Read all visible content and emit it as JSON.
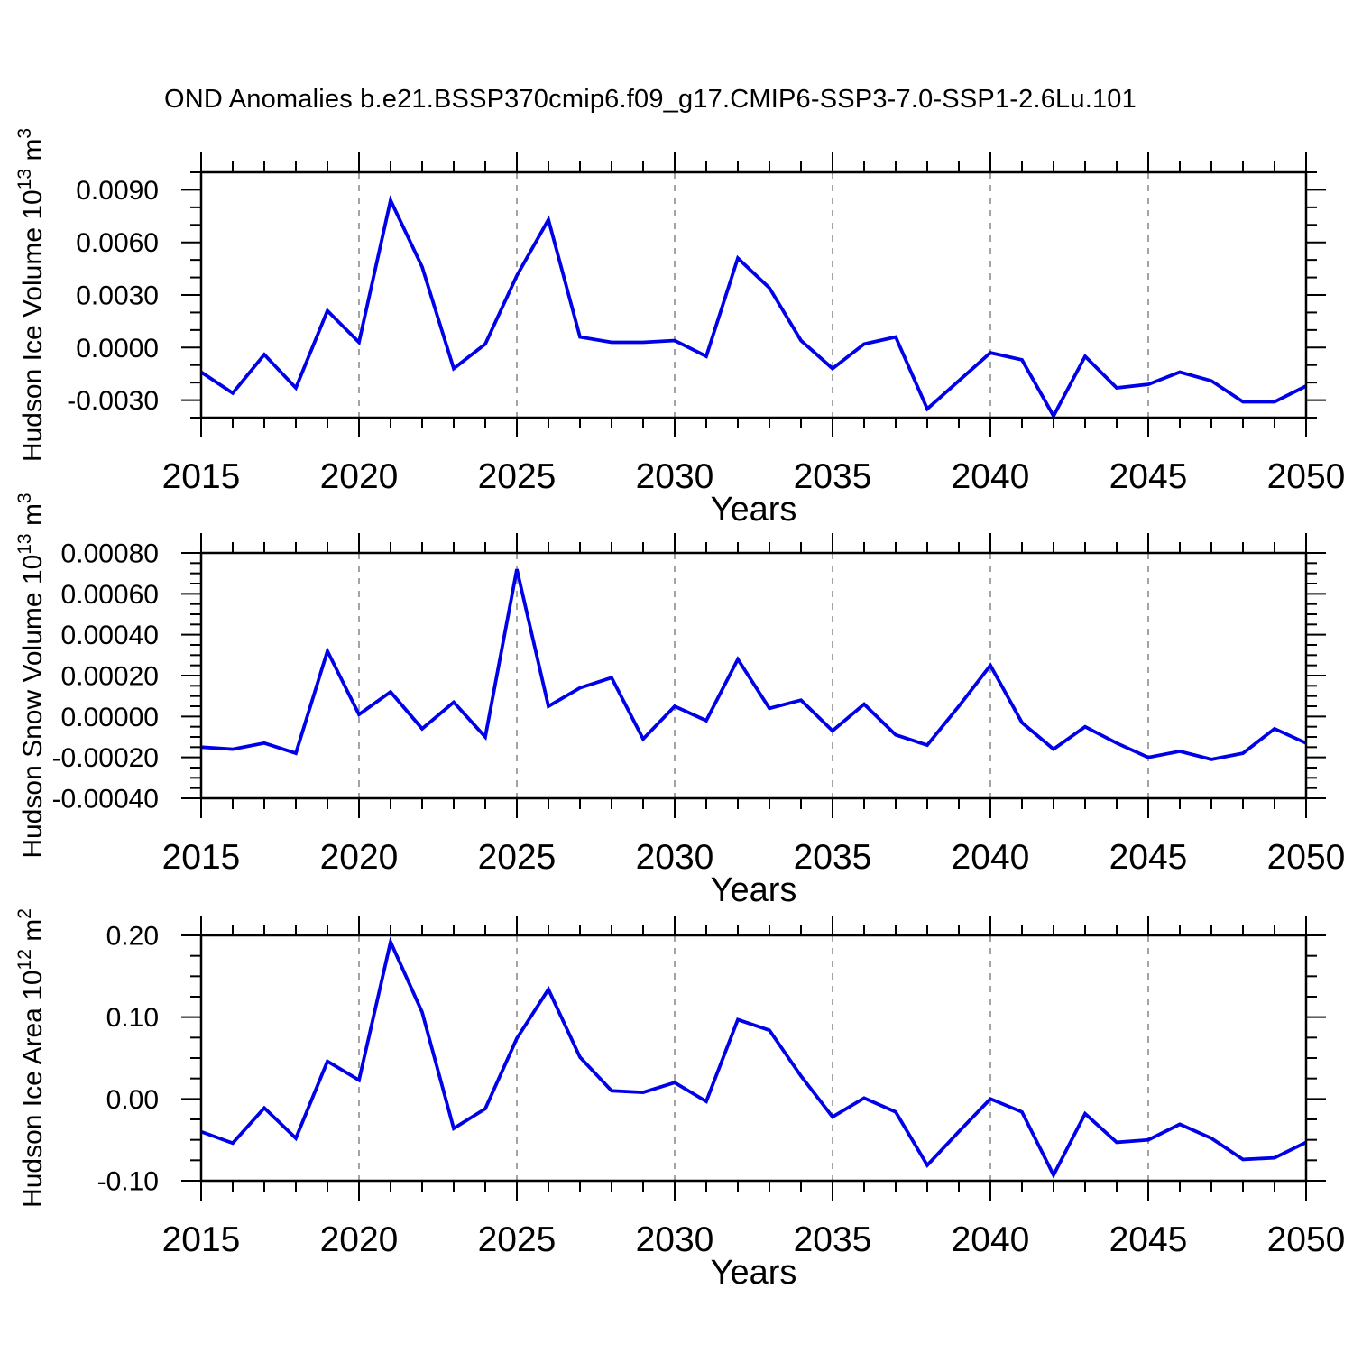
{
  "title": "OND Anomalies b.e21.BSSP370cmip6.f09_g17.CMIP6-SSP3-7.0-SSP1-2.6Lu.101",
  "colors": {
    "line": "#0000e8",
    "grid": "#9a9a9a",
    "axis": "#000000"
  },
  "x_axis": {
    "title": "Years",
    "start": 2015,
    "end": 2050,
    "major_step": 5,
    "minor_step": 1,
    "grid_years": [
      2020,
      2025,
      2030,
      2035,
      2040,
      2045
    ],
    "tick_labels": [
      "2015",
      "2020",
      "2025",
      "2030",
      "2035",
      "2040",
      "2045",
      "2050"
    ]
  },
  "chart_data": [
    {
      "type": "line",
      "title": "",
      "ylabel": "Hudson Ice Volume 10^13 m^3",
      "xlabel": "Years",
      "ylim": [
        -0.004,
        0.01
      ],
      "y_tick_values": [
        -0.003,
        0.0,
        0.003,
        0.006,
        0.009
      ],
      "y_tick_labels": [
        "-0.0030",
        "0.0000",
        "0.0030",
        "0.0060",
        "0.0090"
      ],
      "y_major_step": 0.003,
      "y_minor_step": 0.001,
      "grid": "vertical-dashed",
      "legend": "none",
      "years": [
        2015,
        2016,
        2017,
        2018,
        2019,
        2020,
        2021,
        2022,
        2023,
        2024,
        2025,
        2026,
        2027,
        2028,
        2029,
        2030,
        2031,
        2032,
        2033,
        2034,
        2035,
        2036,
        2037,
        2038,
        2039,
        2040,
        2041,
        2042,
        2043,
        2044,
        2045,
        2046,
        2047,
        2048,
        2049,
        2050
      ],
      "values": [
        -0.0014,
        -0.0026,
        -0.0004,
        -0.0023,
        0.0021,
        0.0003,
        0.0084,
        0.0046,
        -0.0012,
        0.0002,
        0.0041,
        0.0073,
        0.0006,
        0.0003,
        0.0003,
        0.0004,
        -0.0005,
        0.0051,
        0.0034,
        0.0004,
        -0.0012,
        0.0002,
        0.0006,
        -0.0035,
        -0.0019,
        -0.0003,
        -0.0007,
        -0.0039,
        -0.0005,
        -0.0023,
        -0.0021,
        -0.0014,
        -0.0019,
        -0.0031,
        -0.0031,
        -0.0022
      ]
    },
    {
      "type": "line",
      "title": "",
      "ylabel": "Hudson Snow Volume 10^13 m^3",
      "xlabel": "Years",
      "ylim": [
        -0.0004,
        0.0008
      ],
      "y_tick_values": [
        -0.0004,
        -0.0002,
        0.0,
        0.0002,
        0.0004,
        0.0006,
        0.0008
      ],
      "y_tick_labels": [
        "-0.00040",
        "-0.00020",
        "0.00000",
        "0.00020",
        "0.00040",
        "0.00060",
        "0.00080"
      ],
      "y_major_step": 0.0002,
      "y_minor_step": 5e-05,
      "grid": "vertical-dashed",
      "legend": "none",
      "years": [
        2015,
        2016,
        2017,
        2018,
        2019,
        2020,
        2021,
        2022,
        2023,
        2024,
        2025,
        2026,
        2027,
        2028,
        2029,
        2030,
        2031,
        2032,
        2033,
        2034,
        2035,
        2036,
        2037,
        2038,
        2039,
        2040,
        2041,
        2042,
        2043,
        2044,
        2045,
        2046,
        2047,
        2048,
        2049,
        2050
      ],
      "values": [
        -0.00015,
        -0.00016,
        -0.00013,
        -0.00018,
        0.00032,
        1e-05,
        0.00012,
        -6e-05,
        7e-05,
        -0.0001,
        0.00072,
        5e-05,
        0.00014,
        0.00019,
        -0.00011,
        5e-05,
        -2e-05,
        0.00028,
        4e-05,
        8e-05,
        -7e-05,
        6e-05,
        -9e-05,
        -0.00014,
        5e-05,
        0.00025,
        -3e-05,
        -0.00016,
        -5e-05,
        -0.00013,
        -0.0002,
        -0.00017,
        -0.00021,
        -0.00018,
        -6e-05,
        -0.00013
      ]
    },
    {
      "type": "line",
      "title": "",
      "ylabel": "Hudson Ice Area 10^12 m^2",
      "xlabel": "Years",
      "ylim": [
        -0.1,
        0.2
      ],
      "y_tick_values": [
        -0.1,
        0.0,
        0.1,
        0.2
      ],
      "y_tick_labels": [
        "-0.10",
        "0.00",
        "0.10",
        "0.20"
      ],
      "y_major_step": 0.1,
      "y_minor_step": 0.025,
      "grid": "vertical-dashed",
      "legend": "none",
      "years": [
        2015,
        2016,
        2017,
        2018,
        2019,
        2020,
        2021,
        2022,
        2023,
        2024,
        2025,
        2026,
        2027,
        2028,
        2029,
        2030,
        2031,
        2032,
        2033,
        2034,
        2035,
        2036,
        2037,
        2038,
        2039,
        2040,
        2041,
        2042,
        2043,
        2044,
        2045,
        2046,
        2047,
        2048,
        2049,
        2050
      ],
      "values": [
        -0.04,
        -0.054,
        -0.011,
        -0.048,
        0.046,
        0.023,
        0.192,
        0.106,
        -0.036,
        -0.012,
        0.074,
        0.134,
        0.051,
        0.01,
        0.008,
        0.02,
        -0.003,
        0.097,
        0.084,
        0.028,
        -0.022,
        0.001,
        -0.016,
        -0.081,
        -0.04,
        0.0,
        -0.016,
        -0.093,
        -0.018,
        -0.053,
        -0.05,
        -0.031,
        -0.048,
        -0.074,
        -0.072,
        -0.053
      ]
    }
  ]
}
